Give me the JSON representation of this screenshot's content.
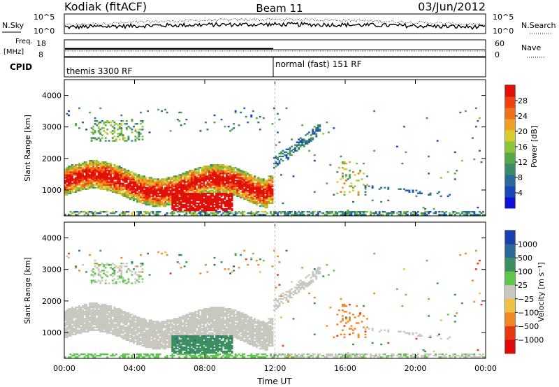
{
  "header": {
    "station": "Kodiak (fitACF)",
    "beam": "Beam 11",
    "date": "03/Jun/2012"
  },
  "status_panels": {
    "nsky_label": "N.Sky",
    "nsearch_label": "N.Search",
    "nsky_ticks": [
      "10^5",
      "10^0"
    ],
    "nsearch_ticks": [
      "10^5",
      "10^0"
    ],
    "freq_label_1": "Freq.",
    "freq_label_2": "[MHz]",
    "freq_ticks": [
      "18",
      "8"
    ],
    "nave_label": "Nave",
    "nave_ticks": [
      "60",
      "0"
    ],
    "cpid_label": "CPID",
    "cpid_segments": [
      {
        "label": "themis 3300 RF",
        "start_hour": 0,
        "end_hour": 12
      },
      {
        "label": "normal (fast) 151 RF",
        "start_hour": 12,
        "end_hour": 24
      }
    ]
  },
  "chart_data": [
    {
      "type": "heatmap",
      "name": "power",
      "ylabel": "Slant Range [km]",
      "xlabel": "Time UT",
      "xlim": [
        0,
        24
      ],
      "ylim": [
        180,
        4500
      ],
      "x_ticks": [
        "00:00",
        "04:00",
        "08:00",
        "12:00",
        "16:00",
        "20:00",
        "00:00"
      ],
      "y_ticks": [
        1000,
        2000,
        3000,
        4000
      ],
      "colorbar": {
        "label": "Power [dB]",
        "ticks": [
          "4",
          "8",
          "12",
          "16",
          "20",
          "24",
          "28"
        ],
        "range": [
          0,
          30
        ],
        "colors": [
          "#1010d8",
          "#1a48b8",
          "#2a6b9a",
          "#3b8a6a",
          "#55a845",
          "#8cc43a",
          "#d8cc2a",
          "#f0a020",
          "#f07018",
          "#f04010",
          "#e01008"
        ]
      }
    },
    {
      "type": "heatmap",
      "name": "velocity",
      "ylabel": "Slant Range [km]",
      "xlabel": "Time UT",
      "xlim": [
        0,
        24
      ],
      "ylim": [
        180,
        4500
      ],
      "x_ticks": [
        "00:00",
        "04:00",
        "08:00",
        "12:00",
        "16:00",
        "20:00",
        "00:00"
      ],
      "y_ticks": [
        1000,
        2000,
        3000,
        4000
      ],
      "colorbar": {
        "label": "Velocity [m s⁻¹]",
        "ticks": [
          "1000",
          "500",
          "100",
          "25",
          "−25",
          "−100",
          "−500",
          "−1000"
        ],
        "colors": [
          "#1a3fb0",
          "#2a6a9a",
          "#3d8e60",
          "#5ec84a",
          "#c8c8c0",
          "#f0c040",
          "#f08a20",
          "#e83a10",
          "#e00a0a"
        ]
      }
    }
  ],
  "footer": {
    "xaxis_title": "Time UT"
  }
}
